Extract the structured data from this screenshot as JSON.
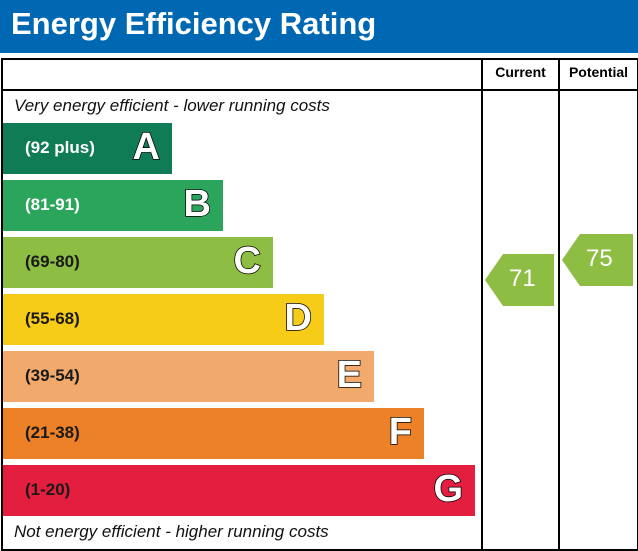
{
  "title": "Energy Efficiency Rating",
  "columns": {
    "current": "Current",
    "potential": "Potential"
  },
  "top_note": "Very energy efficient - lower running costs",
  "bottom_note": "Not energy efficient - higher running costs",
  "chart_data": {
    "type": "bar",
    "title": "Energy Efficiency Rating",
    "bands": [
      {
        "letter": "A",
        "range": "(92 plus)",
        "color": "#107c55",
        "text_color": "#ffffff"
      },
      {
        "letter": "B",
        "range": "(81-91)",
        "color": "#2aa55b",
        "text_color": "#ffffff"
      },
      {
        "letter": "C",
        "range": "(69-80)",
        "color": "#8dbe43",
        "text_color": "#1a1a1a"
      },
      {
        "letter": "D",
        "range": "(55-68)",
        "color": "#f7cc18",
        "text_color": "#1a1a1a"
      },
      {
        "letter": "E",
        "range": "(39-54)",
        "color": "#f2aa6c",
        "text_color": "#1a1a1a"
      },
      {
        "letter": "F",
        "range": "(21-38)",
        "color": "#ed8128",
        "text_color": "#1a1a1a"
      },
      {
        "letter": "G",
        "range": "(1-20)",
        "color": "#e31e3f",
        "text_color": "#1a1a1a"
      }
    ],
    "current": {
      "value": "71",
      "band": "C",
      "color": "#8dbe43"
    },
    "potential": {
      "value": "75",
      "band": "C",
      "color": "#8dbe43"
    }
  }
}
